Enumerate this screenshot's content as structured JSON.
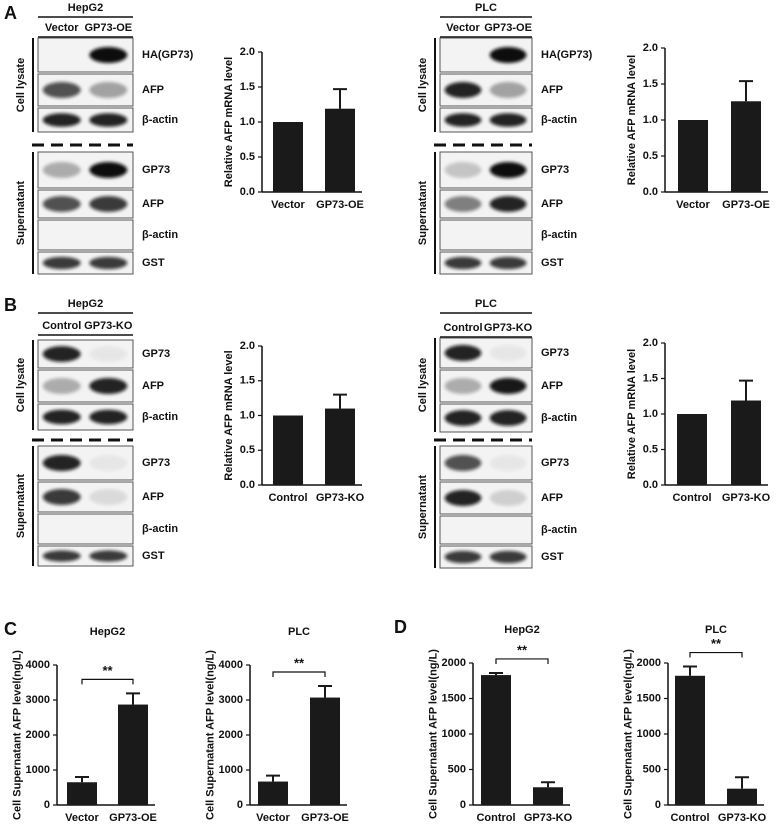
{
  "panel_labels": [
    "A",
    "B",
    "C",
    "D"
  ],
  "blots": [
    {
      "cell_line": "HepG2",
      "lanes": [
        "Vector",
        "GP73-OE"
      ],
      "groups": [
        {
          "label": "Cell lysate",
          "rows": [
            "HA(GP73)",
            "AFP",
            "β-actin"
          ]
        },
        {
          "label": "Supernatant",
          "rows": [
            "GP73",
            "AFP",
            "β-actin",
            "GST"
          ]
        }
      ]
    },
    {
      "cell_line": "PLC",
      "lanes": [
        "Vector",
        "GP73-OE"
      ],
      "groups": [
        {
          "label": "Cell lysate",
          "rows": [
            "HA(GP73)",
            "AFP",
            "β-actin"
          ]
        },
        {
          "label": "Supernatant",
          "rows": [
            "GP73",
            "AFP",
            "β-actin",
            "GST"
          ]
        }
      ]
    },
    {
      "cell_line": "HepG2",
      "lanes": [
        "Control",
        "GP73-KO"
      ],
      "groups": [
        {
          "label": "Cell lysate",
          "rows": [
            "GP73",
            "AFP",
            "β-actin"
          ]
        },
        {
          "label": "Supernatant",
          "rows": [
            "GP73",
            "AFP",
            "β-actin",
            "GST"
          ]
        }
      ]
    },
    {
      "cell_line": "PLC",
      "lanes": [
        "Control",
        "GP73-KO"
      ],
      "groups": [
        {
          "label": "Cell lysate",
          "rows": [
            "GP73",
            "AFP",
            "β-actin"
          ]
        },
        {
          "label": "Supernatant",
          "rows": [
            "GP73",
            "AFP",
            "β-actin",
            "GST"
          ]
        }
      ]
    }
  ],
  "chart_data": [
    {
      "type": "bar",
      "ylabel": "Relative AFP mRNA level",
      "categories": [
        "Vector",
        "GP73-OE"
      ],
      "values": [
        1.0,
        1.19
      ],
      "errors": [
        null,
        0.28
      ],
      "color": "#1a1a1a",
      "ylim": [
        0,
        2
      ],
      "yticks": [
        {
          "value": 0,
          "label": "0.0"
        },
        {
          "value": 0.5,
          "label": "0.5"
        },
        {
          "value": 1,
          "label": "1.0"
        },
        {
          "value": 1.5,
          "label": "1.5"
        },
        {
          "value": 2,
          "label": "2.0"
        }
      ]
    },
    {
      "type": "bar",
      "ylabel": "Relative AFP mRNA level",
      "categories": [
        "Vector",
        "GP73-OE"
      ],
      "values": [
        1.0,
        1.26
      ],
      "errors": [
        null,
        0.28
      ],
      "color": "#1a1a1a",
      "ylim": [
        0,
        2
      ],
      "yticks": [
        {
          "value": 0,
          "label": "0.0"
        },
        {
          "value": 0.5,
          "label": "0.5"
        },
        {
          "value": 1,
          "label": "1.0"
        },
        {
          "value": 1.5,
          "label": "1.5"
        },
        {
          "value": 2,
          "label": "2.0"
        }
      ]
    },
    {
      "type": "bar",
      "ylabel": "Relative AFP mRNA level",
      "categories": [
        "Control",
        "GP73-KO"
      ],
      "values": [
        1.0,
        1.1
      ],
      "errors": [
        null,
        0.2
      ],
      "color": "#1a1a1a",
      "ylim": [
        0,
        2
      ],
      "yticks": [
        {
          "value": 0,
          "label": "0.0"
        },
        {
          "value": 0.5,
          "label": "0.5"
        },
        {
          "value": 1,
          "label": "1.0"
        },
        {
          "value": 1.5,
          "label": "1.5"
        },
        {
          "value": 2,
          "label": "2.0"
        }
      ]
    },
    {
      "type": "bar",
      "ylabel": "Relative AFP mRNA level",
      "categories": [
        "Control",
        "GP73-KO"
      ],
      "values": [
        1.0,
        1.19
      ],
      "errors": [
        null,
        0.28
      ],
      "color": "#1a1a1a",
      "ylim": [
        0,
        2
      ],
      "yticks": [
        {
          "value": 0,
          "label": "0.0"
        },
        {
          "value": 0.5,
          "label": "0.5"
        },
        {
          "value": 1,
          "label": "1.0"
        },
        {
          "value": 1.5,
          "label": "1.5"
        },
        {
          "value": 2,
          "label": "2.0"
        }
      ]
    },
    {
      "type": "bar",
      "title": "HepG2",
      "ylabel": "Cell Supernatant AFP level(ng/L)",
      "categories": [
        "Vector",
        "GP73-OE"
      ],
      "values": [
        650,
        2870
      ],
      "errors": [
        150,
        320
      ],
      "color": "#1a1a1a",
      "ylim": [
        0,
        4000
      ],
      "yticks": [
        0,
        1000,
        2000,
        3000,
        4000
      ],
      "annotation": "**"
    },
    {
      "type": "bar",
      "title": "PLC",
      "ylabel": "Cell Supernatant AFP level(ng/L)",
      "categories": [
        "Vector",
        "GP73-OE"
      ],
      "values": [
        670,
        3070
      ],
      "errors": [
        170,
        330
      ],
      "color": "#1a1a1a",
      "ylim": [
        0,
        4000
      ],
      "yticks": [
        0,
        1000,
        2000,
        3000,
        4000
      ],
      "annotation": "**"
    },
    {
      "type": "bar",
      "title": "HepG2",
      "ylabel": "Cell Supernatant AFP level(ng/L)",
      "categories": [
        "Control",
        "GP73-KO"
      ],
      "values": [
        1830,
        250
      ],
      "errors": [
        30,
        70
      ],
      "color": "#1a1a1a",
      "ylim": [
        0,
        2000
      ],
      "yticks": [
        0,
        500,
        1000,
        1500,
        2000
      ],
      "annotation": "**"
    },
    {
      "type": "bar",
      "title": "PLC",
      "ylabel": "Cell Supernatant AFP level(ng/L)",
      "categories": [
        "Control",
        "GP73-KO"
      ],
      "values": [
        1820,
        230
      ],
      "errors": [
        130,
        160
      ],
      "color": "#1a1a1a",
      "ylim": [
        0,
        2000
      ],
      "yticks": [
        0,
        500,
        1000,
        1500,
        2000
      ],
      "annotation": "**"
    }
  ]
}
